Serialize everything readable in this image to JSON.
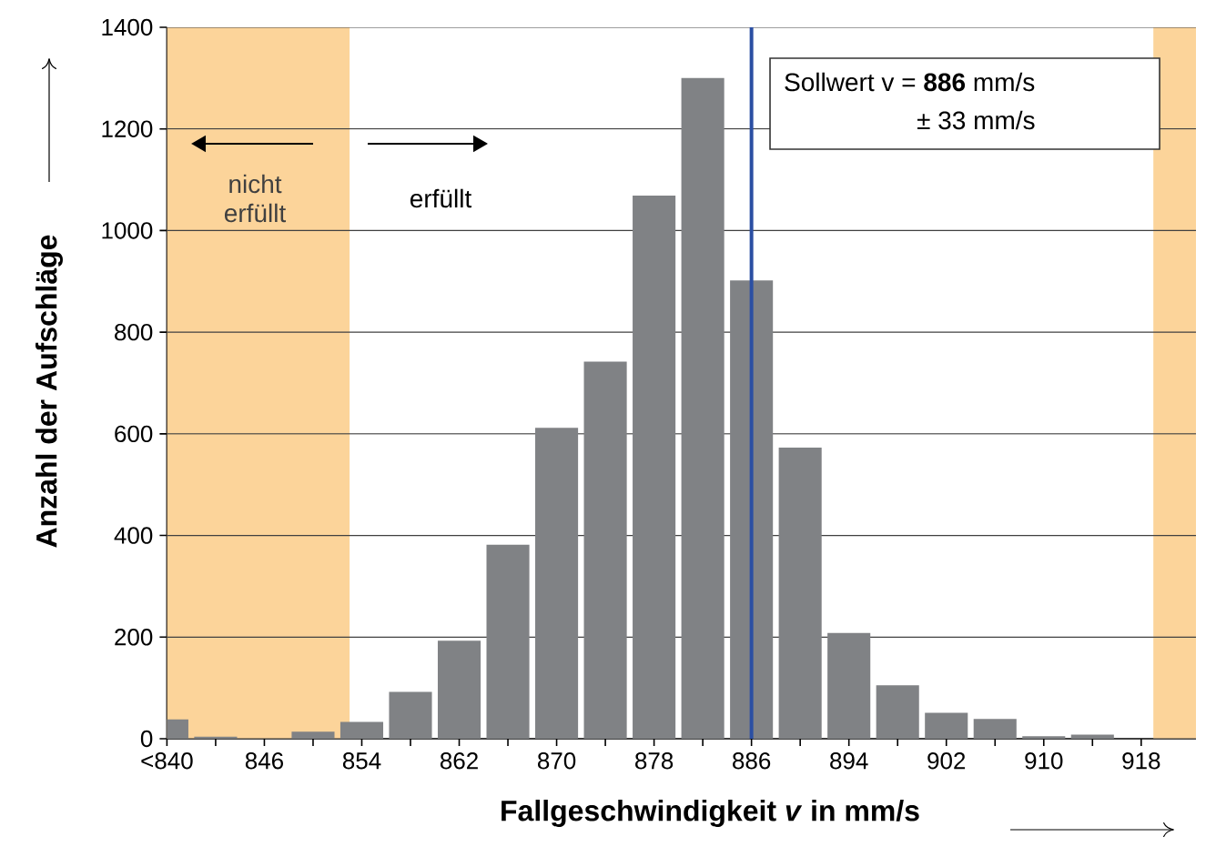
{
  "chart_data": {
    "type": "bar",
    "xlabel": "Fallgeschwindigkeit *v* in mm/s",
    "ylabel": "Anzahl der Aufschläge",
    "x": [
      838,
      842,
      846,
      850,
      854,
      858,
      862,
      866,
      870,
      874,
      878,
      882,
      886,
      890,
      894,
      898,
      902,
      906,
      910,
      914,
      918
    ],
    "values": [
      38,
      4,
      0,
      14,
      33,
      92,
      193,
      382,
      612,
      742,
      1069,
      1300,
      902,
      573,
      208,
      105,
      51,
      39,
      5,
      8,
      0
    ],
    "color": "#808285",
    "xlim": [
      838,
      922.5
    ],
    "ylim": [
      0,
      1400
    ],
    "xticks": [
      {
        "value": 838,
        "label": "<840"
      },
      {
        "value": 842,
        "label": null
      },
      846,
      {
        "value": 850,
        "label": null
      },
      854,
      {
        "value": 858,
        "label": null
      },
      862,
      {
        "value": 866,
        "label": null
      },
      870,
      {
        "value": 874,
        "label": null
      },
      878,
      {
        "value": 882,
        "label": null
      },
      886,
      {
        "value": 890,
        "label": null
      },
      894,
      {
        "value": 898,
        "label": null
      },
      902,
      {
        "value": 906,
        "label": null
      },
      910,
      {
        "value": 914,
        "label": null
      },
      918
    ],
    "yticks": [
      0,
      200,
      400,
      600,
      800,
      1000,
      1200,
      1400
    ],
    "grid": "y",
    "ref_lines": [
      {
        "axis": "x",
        "value": 886,
        "label": "Sollwert v = **886** mm/s",
        "color": "#2b4fa3"
      }
    ],
    "bands": [
      {
        "axis": "x",
        "from": 838,
        "to": 853,
        "color": "#fcd49a"
      },
      {
        "axis": "x",
        "from": 919,
        "to": 922.5,
        "color": "#fcd49a"
      }
    ],
    "annotations": [
      "nicht erfüllt",
      "erfüllt",
      "± 33 mm/s"
    ]
  }
}
